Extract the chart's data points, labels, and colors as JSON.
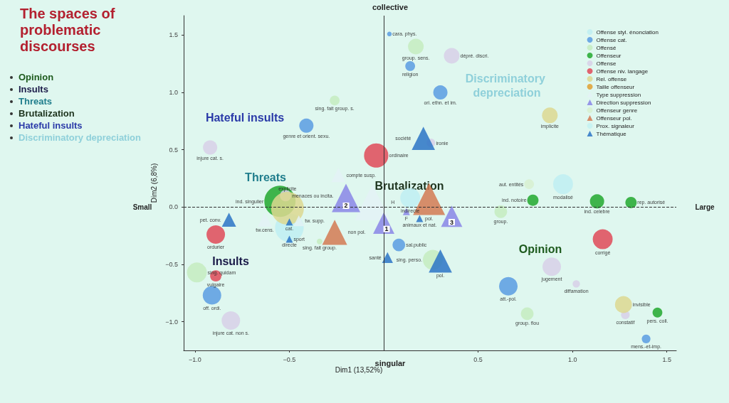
{
  "chart_data": {
    "type": "bubble",
    "title": "The spaces of problematic discourses",
    "xlabel": "Dim1 (13,52%)",
    "ylabel": "Dim2 (6,8%)",
    "xlim": [
      -1.06,
      1.55
    ],
    "ylim": [
      -1.25,
      1.67
    ],
    "xticks": [
      {
        "value": -1.0,
        "label": "−1.0"
      },
      {
        "value": -0.5,
        "label": "−0.5"
      },
      {
        "value": 0.5,
        "label": "0.5"
      },
      {
        "value": 1.0,
        "label": "1.0"
      },
      {
        "value": 1.5,
        "label": "1.5"
      }
    ],
    "yticks": [
      {
        "value": -1.0,
        "label": "−1.0"
      },
      {
        "value": -0.5,
        "label": "−0.5"
      },
      {
        "value": 0,
        "label": "0.0"
      },
      {
        "value": 0.5,
        "label": "0.5"
      },
      {
        "value": 1.0,
        "label": "1.0"
      },
      {
        "value": 1.5,
        "label": "1.5"
      }
    ],
    "grid": false,
    "legend": "top right",
    "ref_lines": [
      {
        "axis": "x",
        "value": 0,
        "line_style": "solid"
      },
      {
        "axis": "y",
        "value": 0,
        "line_style": "dashed"
      }
    ],
    "annotations": [
      "collective",
      "singular",
      "Small",
      "Large",
      "Opinion",
      "Insults",
      "Threats",
      "Brutalization",
      "Hateful insults",
      "Discriminatory depreciation",
      "Opinion",
      "Insults",
      "Threats",
      "Brutalization",
      "Hateful insults",
      "Discriminatory depreciation",
      {
        "text": "2",
        "x": -0.2,
        "y": 0.08
      },
      {
        "text": "1",
        "x": 0.0,
        "y": -0.14
      },
      {
        "text": "3",
        "x": 0.36,
        "y": -0.08
      }
    ],
    "series": [
      {
        "name": "Offense styl. énonciation",
        "color": "#bfeff2",
        "marker": "circle",
        "x": [
          -0.5,
          0.14,
          0.95
        ],
        "values": [
          -0.18,
          0.08,
          0.2
        ],
        "sizes": [
          0.76,
          0.37,
          0.37
        ],
        "value_labels": [
          "directe",
          "indirecte",
          "modalisé"
        ]
      },
      {
        "name": "Offense cat.",
        "color": "#5a9ce2",
        "marker": "circle",
        "x": [
          0.03,
          0.14,
          0.3,
          -0.41,
          -0.91,
          0.66,
          0.08,
          1.39
        ],
        "values": [
          1.51,
          1.23,
          1.0,
          0.71,
          -0.77,
          -0.69,
          -0.33,
          -1.15
        ],
        "sizes": [
          0.02,
          0.09,
          0.19,
          0.19,
          0.32,
          0.32,
          0.15,
          0.07
        ],
        "value_labels": [
          "cara. phys.",
          "religion",
          "ori. ethn. et im.",
          "genre et orient. sexu.",
          "off. ordi.",
          "att.-pol.",
          "sal.public",
          "mens.-et-imp."
        ]
      },
      {
        "name": "Offensé",
        "color": "#c6ecc0",
        "marker": "circle",
        "x": [
          0.17,
          -0.26,
          -0.99,
          0.26,
          0.62,
          0.76,
          -0.34
        ],
        "values": [
          1.4,
          0.93,
          -0.57,
          -0.46,
          -0.04,
          -0.93,
          -0.3
        ],
        "sizes": [
          0.23,
          0.09,
          0.37,
          0.37,
          0.15,
          0.15,
          0.03
        ],
        "value_labels": [
          "group. sens.",
          "sing. fait group. s.",
          "sing. quidam",
          "sing. perso.",
          "group.",
          "group. flou",
          "sing. fait group."
        ]
      },
      {
        "name": "Offenseur",
        "color": "#22a82e",
        "marker": "circle",
        "x": [
          -0.55,
          0.79,
          1.13,
          1.31,
          1.45
        ],
        "values": [
          0.05,
          0.06,
          0.05,
          0.04,
          -0.92
        ],
        "sizes": [
          0.91,
          0.12,
          0.19,
          0.12,
          0.09
        ],
        "value_labels": [
          "ind. singulier",
          "ind. notoire",
          "ind. celebre",
          "rep. autorisé",
          "pers. coll."
        ]
      },
      {
        "name": "Offense",
        "color": "#d8d0e8",
        "marker": "circle",
        "x": [
          0.36,
          -0.92,
          -0.81,
          0.89,
          1.02,
          0.25,
          1.28,
          -0.52
        ],
        "values": [
          1.32,
          0.52,
          -0.99,
          -0.52,
          -0.67,
          0.56,
          -0.94,
          0.1
        ],
        "sizes": [
          0.23,
          0.19,
          0.32,
          0.32,
          0.05,
          0.07,
          0.07,
          0.12
        ],
        "value_labels": [
          "dépré. discri.",
          "injure cat. s.",
          "injure cat. non s.",
          "jugement",
          "diffamation",
          "ironie",
          "constatif",
          "menaces ou incita."
        ]
      },
      {
        "name": "Offense niv. langage",
        "color": "#e04a58",
        "marker": "circle",
        "x": [
          -0.04,
          -0.89,
          -0.89,
          1.16
        ],
        "values": [
          0.45,
          -0.24,
          -0.6,
          -0.28
        ],
        "sizes": [
          0.55,
          0.32,
          0.12,
          0.37
        ],
        "value_labels": [
          "ordinaire",
          "ordurier",
          "vulgaire",
          "corrigé"
        ]
      },
      {
        "name": "Rel. offense",
        "color": "#ddd890",
        "marker": "circle",
        "x": [
          -0.51,
          0.88,
          1.27
        ],
        "values": [
          -0.01,
          0.8,
          -0.85
        ],
        "sizes": [
          1,
          0.23,
          0.27
        ],
        "value_labels": [
          "explicite",
          "implicite",
          "invisible"
        ]
      },
      {
        "name": "Taille offenseur",
        "color": "#e0a030",
        "marker": "circle"
      },
      {
        "name": "Type suppression",
        "color": "#e4f2f6",
        "marker": "triangle",
        "x": [
          -0.63,
          -0.24,
          -0.06,
          -0.45
        ],
        "values": [
          -0.11,
          0.28,
          0.04,
          -0.12
        ],
        "sizes": [
          0.12,
          0.12,
          0.76,
          0.07
        ],
        "value_labels": [
          "tw.cens.",
          "compte susp.",
          "H",
          "tw. supp."
        ]
      },
      {
        "name": "Direction suppression",
        "color": "#8a86e6",
        "marker": "triangle",
        "x": [
          -0.2,
          0.0,
          0.36,
          0.12
        ],
        "values": [
          0.08,
          -0.14,
          -0.08,
          -0.04
        ],
        "sizes": [
          0.48,
          0.27,
          0.27,
          0.03
        ],
        "value_labels": [
          null,
          null,
          null,
          "F"
        ]
      },
      {
        "name": "Offenseur genre",
        "color": "#d8f0d0",
        "marker": "circle",
        "x": [
          0.77
        ],
        "values": [
          0.2
        ],
        "sizes": [
          0.09
        ],
        "value_labels": [
          "aut. entités"
        ]
      },
      {
        "name": "Offenseur pol.",
        "color": "#d47a52",
        "marker": "triangle",
        "x": [
          0.24,
          -0.26
        ],
        "values": [
          0.07,
          -0.22
        ],
        "sizes": [
          0.61,
          0.37
        ],
        "value_labels": [
          "pol.",
          "non pol."
        ]
      },
      {
        "name": "Prox. signaleur",
        "color": "#c4f2f2",
        "marker": "circle"
      },
      {
        "name": "Thématique",
        "color": "#2c74c6",
        "marker": "triangle",
        "x": [
          0.21,
          -0.82,
          0.02,
          0.3,
          -0.5,
          -0.5,
          0.19
        ],
        "values": [
          0.6,
          -0.11,
          -0.44,
          -0.47,
          -0.13,
          -0.28,
          -0.1
        ],
        "sizes": [
          0.32,
          0.12,
          0.07,
          0.32,
          0.03,
          0.03,
          0.03
        ],
        "value_labels": [
          "société",
          "pet. conv.",
          "santé",
          "pol.",
          "cat.",
          "sport",
          "animaux et nat."
        ]
      }
    ]
  }
}
